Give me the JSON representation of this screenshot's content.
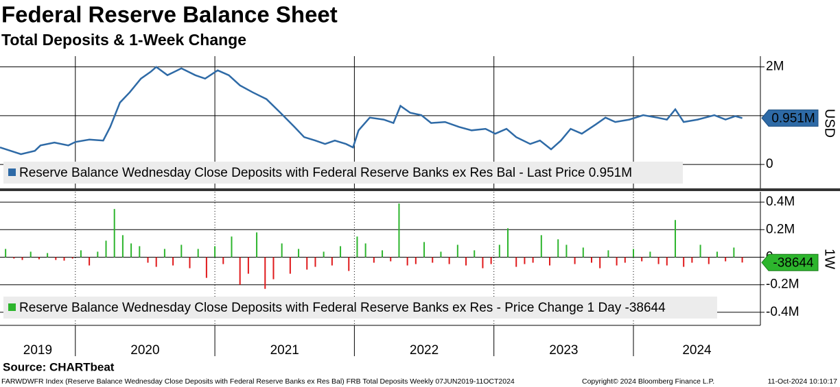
{
  "title": "Federal Reserve Balance Sheet",
  "subtitle": "Total Deposits & 1-Week Change",
  "source": "Source: CHARTbeat",
  "footer": {
    "left": "FARWDWFR Index (Reserve Balance Wednesday Close Deposits with Federal Reserve Banks ex Res Bal) FRB Total Deposits  Weekly 07JUN2019-11OCT2024",
    "center": "Copyright© 2024 Bloomberg Finance L.P.",
    "right": "11-Oct-2024 10:10:17"
  },
  "chart_data": [
    {
      "type": "line",
      "legend": "Reserve Balance Wednesday Close Deposits with Federal Reserve Banks ex Res Bal - Last Price 0.951M",
      "axis_label": "USD",
      "last_value": 0.951,
      "last_value_label": "0.951M",
      "xlim": [
        2019.46,
        2024.91
      ],
      "xticks": [
        {
          "value": 2020,
          "label": "2020"
        },
        {
          "value": 2021,
          "label": "2021"
        },
        {
          "value": 2022,
          "label": "2022"
        },
        {
          "value": 2023,
          "label": "2023"
        },
        {
          "value": 2024,
          "label": "2024"
        }
      ],
      "ylim": [
        -0.49,
        2.22
      ],
      "yticks": [
        0,
        {
          "value": 1,
          "label": null
        },
        {
          "value": 2,
          "label": "2M"
        }
      ],
      "x": [
        2019.46,
        2019.61,
        2019.71,
        2019.75,
        2019.85,
        2019.95,
        2020.0,
        2020.1,
        2020.2,
        2020.25,
        2020.32,
        2020.39,
        2020.47,
        2020.54,
        2020.58,
        2020.66,
        2020.76,
        2020.86,
        2020.93,
        2021.02,
        2021.1,
        2021.18,
        2021.27,
        2021.37,
        2021.47,
        2021.57,
        2021.64,
        2021.72,
        2021.79,
        2021.86,
        2021.94,
        2021.99,
        2022.03,
        2022.11,
        2022.21,
        2022.28,
        2022.33,
        2022.4,
        2022.48,
        2022.55,
        2022.65,
        2022.75,
        2022.84,
        2022.94,
        2023.01,
        2023.09,
        2023.16,
        2023.26,
        2023.33,
        2023.41,
        2023.48,
        2023.55,
        2023.63,
        2023.73,
        2023.8,
        2023.87,
        2023.97,
        2024.07,
        2024.17,
        2024.24,
        2024.3,
        2024.36,
        2024.46,
        2024.58,
        2024.66,
        2024.73,
        2024.78
      ],
      "series": [
        {
          "color": "#2e6aa6",
          "values": [
            0.35,
            0.21,
            0.28,
            0.39,
            0.45,
            0.39,
            0.46,
            0.51,
            0.49,
            0.77,
            1.27,
            1.48,
            1.76,
            1.9,
            2.0,
            1.83,
            1.97,
            1.83,
            1.76,
            1.93,
            1.83,
            1.62,
            1.48,
            1.34,
            1.06,
            0.77,
            0.56,
            0.49,
            0.42,
            0.49,
            0.42,
            0.35,
            0.7,
            0.96,
            0.92,
            0.85,
            1.2,
            1.06,
            1.01,
            0.85,
            0.87,
            0.77,
            0.7,
            0.73,
            0.63,
            0.73,
            0.56,
            0.42,
            0.49,
            0.31,
            0.49,
            0.73,
            0.63,
            0.82,
            0.96,
            0.87,
            0.92,
            1.01,
            0.96,
            0.92,
            1.13,
            0.87,
            0.92,
            1.01,
            0.92,
            0.99,
            0.951
          ]
        }
      ]
    },
    {
      "type": "bar",
      "legend": "Reserve Balance Wednesday Close Deposits with Federal Reserve Banks ex Res - Price Change 1 Day -38644",
      "axis_label": "1W",
      "last_value": -38644,
      "positive_color": "#2db52d",
      "negative_color": "#e0191b",
      "xlim": [
        2019.46,
        2024.91
      ],
      "xticks": [
        {
          "value": 2019,
          "label": "2019"
        },
        {
          "value": 2020,
          "label": "2020"
        },
        {
          "value": 2021,
          "label": "2021"
        },
        {
          "value": 2022,
          "label": "2022"
        },
        {
          "value": 2023,
          "label": "2023"
        },
        {
          "value": 2024,
          "label": "2024"
        }
      ],
      "ylim": [
        -495000,
        475000
      ],
      "yticks": [
        {
          "value": -400000,
          "label": "-0.4M"
        },
        {
          "value": -200000,
          "label": "-0.2M"
        },
        0,
        {
          "value": 200000,
          "label": "0.2M"
        },
        {
          "value": 400000,
          "label": "0.4M"
        }
      ],
      "x": [
        2019.5,
        2019.56,
        2019.62,
        2019.68,
        2019.74,
        2019.8,
        2019.86,
        2019.92,
        2019.98,
        2020.04,
        2020.1,
        2020.16,
        2020.22,
        2020.28,
        2020.34,
        2020.4,
        2020.46,
        2020.52,
        2020.58,
        2020.64,
        2020.7,
        2020.76,
        2020.82,
        2020.88,
        2020.94,
        2021.0,
        2021.06,
        2021.12,
        2021.18,
        2021.24,
        2021.3,
        2021.36,
        2021.42,
        2021.48,
        2021.54,
        2021.6,
        2021.66,
        2021.72,
        2021.78,
        2021.84,
        2021.9,
        2021.96,
        2022.02,
        2022.08,
        2022.14,
        2022.2,
        2022.26,
        2022.32,
        2022.38,
        2022.44,
        2022.5,
        2022.56,
        2022.62,
        2022.68,
        2022.74,
        2022.8,
        2022.86,
        2022.92,
        2022.98,
        2023.04,
        2023.1,
        2023.16,
        2023.22,
        2023.28,
        2023.34,
        2023.4,
        2023.46,
        2023.52,
        2023.58,
        2023.64,
        2023.7,
        2023.76,
        2023.82,
        2023.88,
        2023.94,
        2024.0,
        2024.06,
        2024.12,
        2024.18,
        2024.24,
        2024.3,
        2024.36,
        2024.42,
        2024.48,
        2024.54,
        2024.6,
        2024.66,
        2024.72,
        2024.78
      ],
      "series": [
        {
          "values": [
            60000,
            -10000,
            -20000,
            40000,
            -15000,
            30000,
            -20000,
            -25000,
            -10000,
            50000,
            -60000,
            40000,
            120000,
            350000,
            160000,
            100000,
            80000,
            -40000,
            -70000,
            60000,
            -60000,
            90000,
            -80000,
            60000,
            -150000,
            80000,
            -50000,
            150000,
            -200000,
            -120000,
            180000,
            -230000,
            -160000,
            100000,
            -120000,
            60000,
            -90000,
            -70000,
            40000,
            -60000,
            80000,
            -100000,
            150000,
            100000,
            -40000,
            50000,
            -30000,
            390000,
            -60000,
            -50000,
            110000,
            -40000,
            40000,
            -50000,
            90000,
            -60000,
            50000,
            -80000,
            -50000,
            90000,
            210000,
            -70000,
            -50000,
            -40000,
            160000,
            -60000,
            130000,
            90000,
            -50000,
            70000,
            -40000,
            -80000,
            50000,
            -60000,
            -40000,
            60000,
            -30000,
            40000,
            -50000,
            -60000,
            270000,
            -70000,
            -40000,
            90000,
            -50000,
            40000,
            -30000,
            70000,
            -38644
          ]
        }
      ]
    }
  ]
}
